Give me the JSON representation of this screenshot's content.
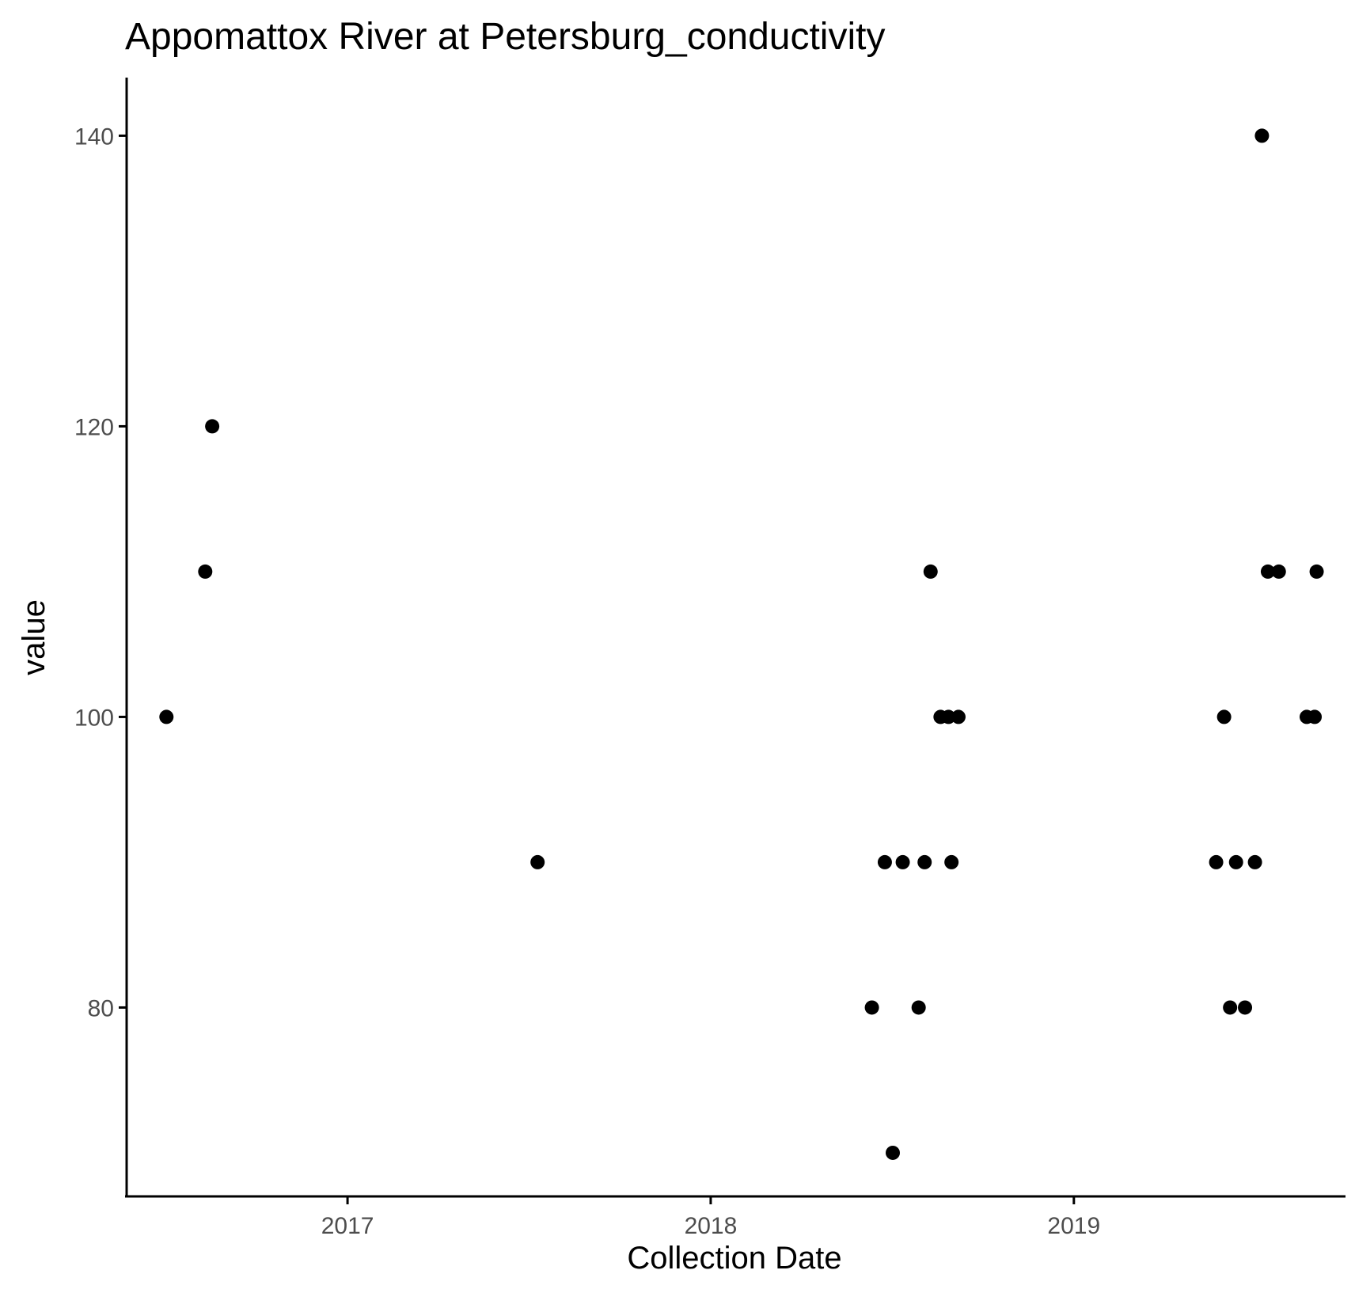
{
  "chart_data": {
    "type": "scatter",
    "title": "Appomattox River at Petersburg_conductivity",
    "xlabel": "Collection Date",
    "ylabel": "value",
    "x_axis_type": "date",
    "xlim": [
      "2016-05-24",
      "2019-10-01"
    ],
    "ylim": [
      67,
      144
    ],
    "x_ticks": [
      {
        "date": "2017-01-01",
        "label": "2017"
      },
      {
        "date": "2018-01-01",
        "label": "2018"
      },
      {
        "date": "2019-01-01",
        "label": "2019"
      }
    ],
    "y_ticks": [
      80,
      100,
      120,
      140
    ],
    "grid": false,
    "legend": "none",
    "point_color": "#000000",
    "points": [
      {
        "x": "2016-07-03",
        "y": 100
      },
      {
        "x": "2016-08-11",
        "y": 110
      },
      {
        "x": "2016-08-18",
        "y": 120
      },
      {
        "x": "2017-07-11",
        "y": 90
      },
      {
        "x": "2018-06-12",
        "y": 80
      },
      {
        "x": "2018-06-25",
        "y": 90
      },
      {
        "x": "2018-07-03",
        "y": 70
      },
      {
        "x": "2018-07-13",
        "y": 90
      },
      {
        "x": "2018-07-29",
        "y": 80
      },
      {
        "x": "2018-08-04",
        "y": 90
      },
      {
        "x": "2018-08-10",
        "y": 110
      },
      {
        "x": "2018-08-20",
        "y": 100
      },
      {
        "x": "2018-08-28",
        "y": 100
      },
      {
        "x": "2018-08-31",
        "y": 90
      },
      {
        "x": "2018-09-07",
        "y": 100
      },
      {
        "x": "2019-05-24",
        "y": 90
      },
      {
        "x": "2019-06-01",
        "y": 100
      },
      {
        "x": "2019-06-07",
        "y": 80
      },
      {
        "x": "2019-06-13",
        "y": 90
      },
      {
        "x": "2019-06-22",
        "y": 80
      },
      {
        "x": "2019-07-02",
        "y": 90
      },
      {
        "x": "2019-07-09",
        "y": 140
      },
      {
        "x": "2019-07-15",
        "y": 110
      },
      {
        "x": "2019-07-26",
        "y": 110
      },
      {
        "x": "2019-08-23",
        "y": 100
      },
      {
        "x": "2019-08-31",
        "y": 100
      },
      {
        "x": "2019-09-02",
        "y": 110
      }
    ]
  }
}
